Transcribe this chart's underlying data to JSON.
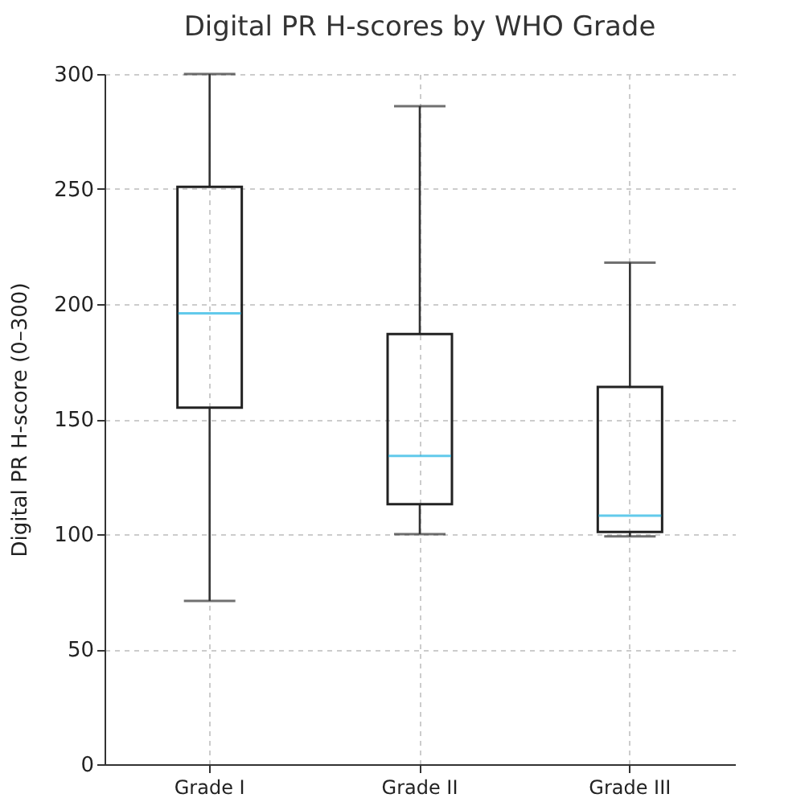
{
  "chart_data": {
    "type": "box",
    "title": "Digital PR H-scores by WHO Grade",
    "ylabel": "Digital PR H-score (0–300)",
    "categories": [
      "Grade I",
      "Grade II",
      "Grade III"
    ],
    "boxes": [
      {
        "low": 71,
        "q1": 155,
        "median": 196,
        "q3": 251,
        "high": 300
      },
      {
        "low": 100,
        "q1": 113,
        "median": 134,
        "q3": 187,
        "high": 286
      },
      {
        "low": 99,
        "q1": 101,
        "median": 108,
        "q3": 164,
        "high": 218
      }
    ],
    "ylim": [
      0,
      300
    ],
    "yticks": [
      0,
      50,
      100,
      150,
      200,
      250,
      300
    ],
    "grid": true
  }
}
